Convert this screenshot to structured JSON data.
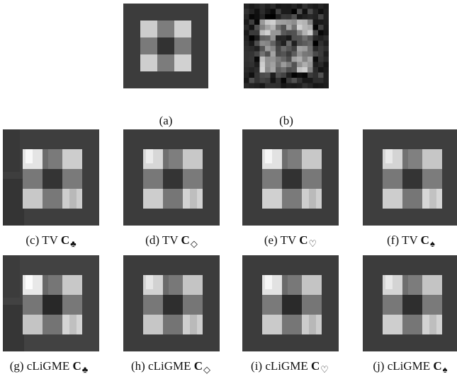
{
  "figure": {
    "panels": [
      {
        "id": "a",
        "caption_label": "(a)",
        "method": "",
        "matrix": "",
        "suit": "",
        "kind": "clean"
      },
      {
        "id": "b",
        "caption_label": "(b)",
        "method": "",
        "matrix": "",
        "suit": "",
        "kind": "noisy"
      },
      {
        "id": "c",
        "caption_label": "(c)",
        "method": "TV",
        "matrix": "C",
        "suit": "♣",
        "kind": "recon"
      },
      {
        "id": "d",
        "caption_label": "(d)",
        "method": "TV",
        "matrix": "C",
        "suit": "◇",
        "kind": "recon"
      },
      {
        "id": "e",
        "caption_label": "(e)",
        "method": "TV",
        "matrix": "C",
        "suit": "♡",
        "kind": "recon"
      },
      {
        "id": "f",
        "caption_label": "(f)",
        "method": "TV",
        "matrix": "C",
        "suit": "♠",
        "kind": "recon"
      },
      {
        "id": "g",
        "caption_label": "(g)",
        "method": "cLiGME",
        "matrix": "C",
        "suit": "♣",
        "kind": "recon"
      },
      {
        "id": "h",
        "caption_label": "(h)",
        "method": "cLiGME",
        "matrix": "C",
        "suit": "◇",
        "kind": "recon"
      },
      {
        "id": "i",
        "caption_label": "(i)",
        "method": "cLiGME",
        "matrix": "C",
        "suit": "♡",
        "kind": "recon"
      },
      {
        "id": "j",
        "caption_label": "(j)",
        "method": "cLiGME",
        "matrix": "C",
        "suit": "♠",
        "kind": "recon"
      }
    ]
  },
  "colors": {
    "background": "#3c3c3c",
    "dark_center": "#303030",
    "mid_gray": "#7c7c7c",
    "light_gray": "#c8c8c8",
    "page": "#ffffff"
  }
}
